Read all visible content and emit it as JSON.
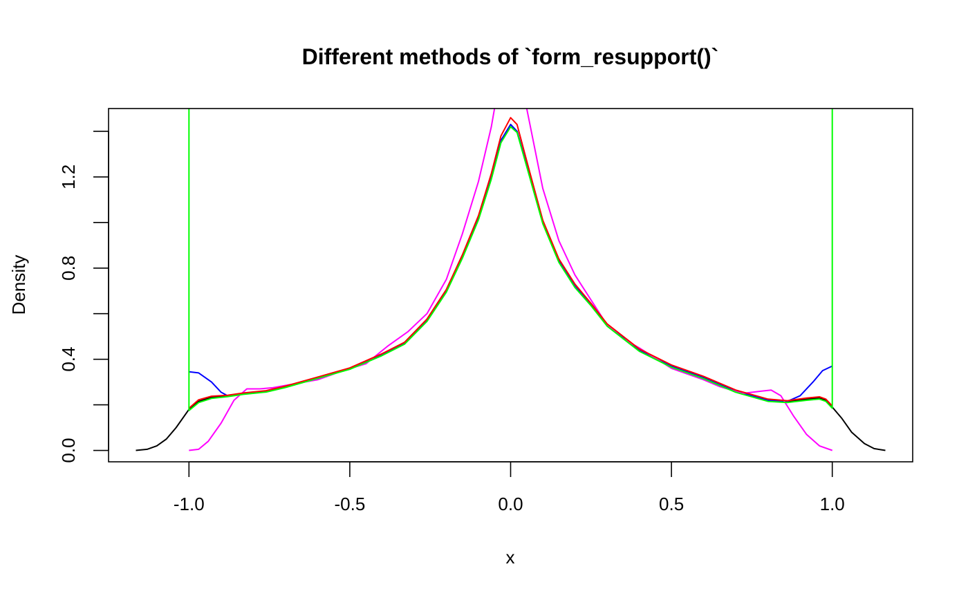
{
  "chart_data": {
    "type": "line",
    "title": "Different methods of `form_resupport()`",
    "xlabel": "x",
    "ylabel": "Density",
    "xlim": [
      -1.25,
      1.25
    ],
    "ylim": [
      -0.05,
      1.5
    ],
    "x_ticks": [
      -1.0,
      -0.5,
      0.0,
      0.5,
      1.0
    ],
    "x_tick_labels": [
      "-1.0",
      "-0.5",
      "0.0",
      "0.5",
      "1.0"
    ],
    "y_ticks": [
      0.0,
      0.2,
      0.4,
      0.6,
      0.8,
      1.0,
      1.2,
      1.4
    ],
    "y_tick_labels": [
      "0.0",
      "",
      "0.4",
      "",
      "0.8",
      "",
      "1.2",
      ""
    ],
    "grid": false,
    "series": [
      {
        "color": "#000000",
        "points": [
          [
            -1.165,
            0.0
          ],
          [
            -1.13,
            0.005
          ],
          [
            -1.1,
            0.02
          ],
          [
            -1.07,
            0.05
          ],
          [
            -1.04,
            0.1
          ],
          [
            -1.0,
            0.18
          ],
          [
            -0.97,
            0.215
          ],
          [
            -0.93,
            0.232
          ],
          [
            -0.88,
            0.24
          ],
          [
            -0.83,
            0.25
          ],
          [
            -0.76,
            0.26
          ],
          [
            -0.7,
            0.28
          ],
          [
            -0.6,
            0.32
          ],
          [
            -0.5,
            0.36
          ],
          [
            -0.4,
            0.42
          ],
          [
            -0.33,
            0.47
          ],
          [
            -0.26,
            0.57
          ],
          [
            -0.2,
            0.7
          ],
          [
            -0.15,
            0.85
          ],
          [
            -0.1,
            1.02
          ],
          [
            -0.06,
            1.2
          ],
          [
            -0.03,
            1.36
          ],
          [
            0.0,
            1.43
          ],
          [
            0.02,
            1.4
          ],
          [
            0.05,
            1.25
          ],
          [
            0.1,
            1.0
          ],
          [
            0.15,
            0.83
          ],
          [
            0.2,
            0.72
          ],
          [
            0.25,
            0.64
          ],
          [
            0.3,
            0.55
          ],
          [
            0.4,
            0.44
          ],
          [
            0.5,
            0.37
          ],
          [
            0.6,
            0.32
          ],
          [
            0.7,
            0.26
          ],
          [
            0.8,
            0.22
          ],
          [
            0.86,
            0.215
          ],
          [
            0.92,
            0.225
          ],
          [
            0.96,
            0.23
          ],
          [
            0.98,
            0.22
          ],
          [
            1.0,
            0.19
          ],
          [
            1.03,
            0.14
          ],
          [
            1.06,
            0.08
          ],
          [
            1.1,
            0.03
          ],
          [
            1.13,
            0.008
          ],
          [
            1.165,
            0.0
          ]
        ]
      },
      {
        "color": "#0000ff",
        "points": [
          [
            -1.0,
            0.345
          ],
          [
            -0.97,
            0.34
          ],
          [
            -0.93,
            0.3
          ],
          [
            -0.9,
            0.255
          ],
          [
            -0.88,
            0.24
          ],
          [
            -0.83,
            0.25
          ],
          [
            -0.76,
            0.26
          ],
          [
            -0.7,
            0.28
          ],
          [
            -0.6,
            0.32
          ],
          [
            -0.5,
            0.36
          ],
          [
            -0.4,
            0.42
          ],
          [
            -0.33,
            0.47
          ],
          [
            -0.26,
            0.57
          ],
          [
            -0.2,
            0.7
          ],
          [
            -0.15,
            0.85
          ],
          [
            -0.1,
            1.02
          ],
          [
            -0.06,
            1.2
          ],
          [
            -0.03,
            1.36
          ],
          [
            0.0,
            1.43
          ],
          [
            0.02,
            1.4
          ],
          [
            0.05,
            1.25
          ],
          [
            0.1,
            1.0
          ],
          [
            0.15,
            0.83
          ],
          [
            0.2,
            0.72
          ],
          [
            0.25,
            0.64
          ],
          [
            0.3,
            0.55
          ],
          [
            0.4,
            0.44
          ],
          [
            0.5,
            0.37
          ],
          [
            0.6,
            0.32
          ],
          [
            0.7,
            0.26
          ],
          [
            0.8,
            0.22
          ],
          [
            0.86,
            0.215
          ],
          [
            0.9,
            0.24
          ],
          [
            0.94,
            0.3
          ],
          [
            0.97,
            0.35
          ],
          [
            1.0,
            0.37
          ]
        ]
      },
      {
        "color": "#ff00ff",
        "points": [
          [
            -1.0,
            0.0
          ],
          [
            -0.97,
            0.005
          ],
          [
            -0.94,
            0.04
          ],
          [
            -0.9,
            0.12
          ],
          [
            -0.86,
            0.22
          ],
          [
            -0.82,
            0.27
          ],
          [
            -0.78,
            0.27
          ],
          [
            -0.74,
            0.275
          ],
          [
            -0.68,
            0.29
          ],
          [
            -0.6,
            0.31
          ],
          [
            -0.52,
            0.35
          ],
          [
            -0.45,
            0.38
          ],
          [
            -0.38,
            0.46
          ],
          [
            -0.32,
            0.52
          ],
          [
            -0.26,
            0.6
          ],
          [
            -0.2,
            0.75
          ],
          [
            -0.15,
            0.95
          ],
          [
            -0.1,
            1.18
          ],
          [
            -0.06,
            1.42
          ],
          [
            -0.05,
            1.5
          ]
        ]
      },
      {
        "color": "#ff00ff",
        "points": [
          [
            0.05,
            1.5
          ],
          [
            0.07,
            1.36
          ],
          [
            0.1,
            1.15
          ],
          [
            0.15,
            0.92
          ],
          [
            0.2,
            0.77
          ],
          [
            0.25,
            0.66
          ],
          [
            0.3,
            0.55
          ],
          [
            0.35,
            0.49
          ],
          [
            0.4,
            0.45
          ],
          [
            0.5,
            0.36
          ],
          [
            0.6,
            0.31
          ],
          [
            0.65,
            0.28
          ],
          [
            0.72,
            0.25
          ],
          [
            0.78,
            0.26
          ],
          [
            0.81,
            0.265
          ],
          [
            0.84,
            0.24
          ],
          [
            0.88,
            0.15
          ],
          [
            0.92,
            0.07
          ],
          [
            0.96,
            0.02
          ],
          [
            1.0,
            0.0
          ]
        ]
      },
      {
        "color": "#ff0000",
        "points": [
          [
            -1.0,
            0.185
          ],
          [
            -0.97,
            0.222
          ],
          [
            -0.93,
            0.238
          ],
          [
            -0.88,
            0.242
          ],
          [
            -0.83,
            0.252
          ],
          [
            -0.76,
            0.262
          ],
          [
            -0.7,
            0.282
          ],
          [
            -0.6,
            0.322
          ],
          [
            -0.5,
            0.362
          ],
          [
            -0.4,
            0.424
          ],
          [
            -0.33,
            0.474
          ],
          [
            -0.26,
            0.576
          ],
          [
            -0.2,
            0.706
          ],
          [
            -0.15,
            0.858
          ],
          [
            -0.1,
            1.03
          ],
          [
            -0.06,
            1.215
          ],
          [
            -0.03,
            1.38
          ],
          [
            0.0,
            1.46
          ],
          [
            0.02,
            1.43
          ],
          [
            0.05,
            1.27
          ],
          [
            0.1,
            1.01
          ],
          [
            0.15,
            0.84
          ],
          [
            0.2,
            0.73
          ],
          [
            0.25,
            0.645
          ],
          [
            0.3,
            0.555
          ],
          [
            0.4,
            0.445
          ],
          [
            0.5,
            0.375
          ],
          [
            0.6,
            0.325
          ],
          [
            0.7,
            0.265
          ],
          [
            0.8,
            0.225
          ],
          [
            0.86,
            0.218
          ],
          [
            0.92,
            0.23
          ],
          [
            0.96,
            0.235
          ],
          [
            0.98,
            0.225
          ],
          [
            1.0,
            0.195
          ]
        ]
      },
      {
        "color": "#00ff00",
        "points": [
          [
            -1.0,
            1.5
          ],
          [
            -1.0,
            0.175
          ],
          [
            -0.97,
            0.21
          ],
          [
            -0.93,
            0.228
          ],
          [
            -0.88,
            0.236
          ],
          [
            -0.83,
            0.246
          ],
          [
            -0.76,
            0.256
          ],
          [
            -0.7,
            0.276
          ],
          [
            -0.6,
            0.316
          ],
          [
            -0.5,
            0.356
          ],
          [
            -0.4,
            0.416
          ],
          [
            -0.33,
            0.466
          ],
          [
            -0.26,
            0.566
          ],
          [
            -0.2,
            0.694
          ],
          [
            -0.15,
            0.843
          ],
          [
            -0.1,
            1.012
          ],
          [
            -0.06,
            1.19
          ],
          [
            -0.03,
            1.35
          ],
          [
            0.0,
            1.42
          ],
          [
            0.02,
            1.395
          ],
          [
            0.05,
            1.245
          ],
          [
            0.1,
            0.995
          ],
          [
            0.15,
            0.825
          ],
          [
            0.2,
            0.715
          ],
          [
            0.25,
            0.635
          ],
          [
            0.3,
            0.545
          ],
          [
            0.4,
            0.435
          ],
          [
            0.5,
            0.365
          ],
          [
            0.6,
            0.315
          ],
          [
            0.7,
            0.255
          ],
          [
            0.8,
            0.215
          ],
          [
            0.86,
            0.21
          ],
          [
            0.92,
            0.22
          ],
          [
            0.96,
            0.225
          ],
          [
            0.98,
            0.215
          ],
          [
            1.0,
            0.185
          ],
          [
            1.0,
            1.5
          ]
        ]
      }
    ]
  }
}
